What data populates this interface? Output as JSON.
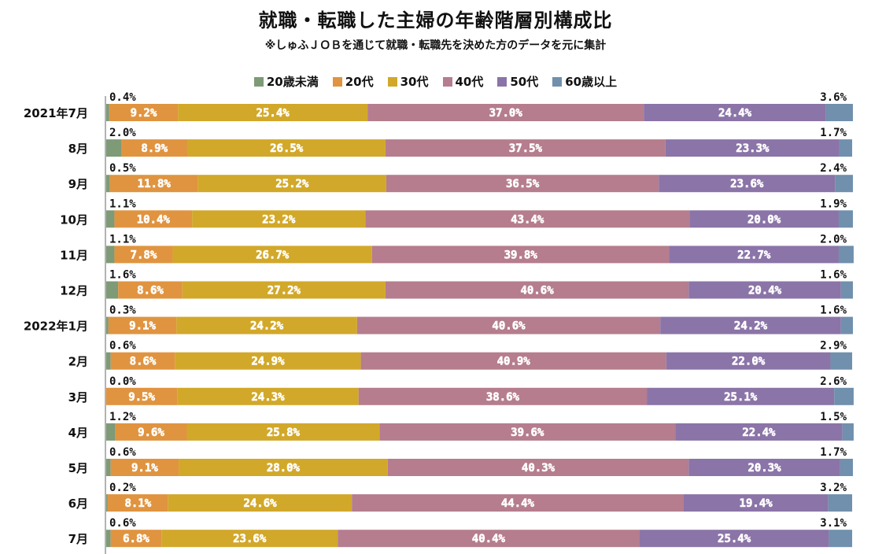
{
  "chart_data": {
    "type": "bar",
    "orientation": "horizontal",
    "stacked": true,
    "percent": true,
    "title": "就職・転職した主婦の年齢階層別構成比",
    "subtitle": "※しゅふＪＯＢを通じて就職・転職先を決めた方のデータを元に集計",
    "legend_position": "top",
    "categories": [
      "2021年7月",
      "8月",
      "9月",
      "10月",
      "11月",
      "12月",
      "2022年1月",
      "2月",
      "3月",
      "4月",
      "5月",
      "6月",
      "7月"
    ],
    "series": [
      {
        "name": "20歳未満",
        "color": "#7e9a77",
        "values": [
          0.4,
          2.0,
          0.5,
          1.1,
          1.1,
          1.6,
          0.3,
          0.6,
          0.0,
          1.2,
          0.6,
          0.2,
          0.6
        ]
      },
      {
        "name": "20代",
        "color": "#e09440",
        "values": [
          9.2,
          8.9,
          11.8,
          10.4,
          7.8,
          8.6,
          9.1,
          8.6,
          9.5,
          9.6,
          9.1,
          8.1,
          6.8
        ]
      },
      {
        "name": "30代",
        "color": "#d2a82a",
        "values": [
          25.4,
          26.5,
          25.2,
          23.2,
          26.7,
          27.2,
          24.2,
          24.9,
          24.3,
          25.8,
          28.0,
          24.6,
          23.6
        ]
      },
      {
        "name": "40代",
        "color": "#b57d8d",
        "values": [
          37.0,
          37.5,
          36.5,
          43.4,
          39.8,
          40.6,
          40.6,
          40.9,
          38.6,
          39.6,
          40.3,
          44.4,
          40.4
        ]
      },
      {
        "name": "50代",
        "color": "#8b74a8",
        "values": [
          24.4,
          23.3,
          23.6,
          20.0,
          22.7,
          20.4,
          24.2,
          22.0,
          25.1,
          22.4,
          20.3,
          19.4,
          25.4
        ]
      },
      {
        "name": "60歳以上",
        "color": "#7090ad",
        "values": [
          3.6,
          1.7,
          2.4,
          1.9,
          2.0,
          1.6,
          1.6,
          2.9,
          2.6,
          1.5,
          1.7,
          3.2,
          3.1
        ]
      }
    ]
  }
}
